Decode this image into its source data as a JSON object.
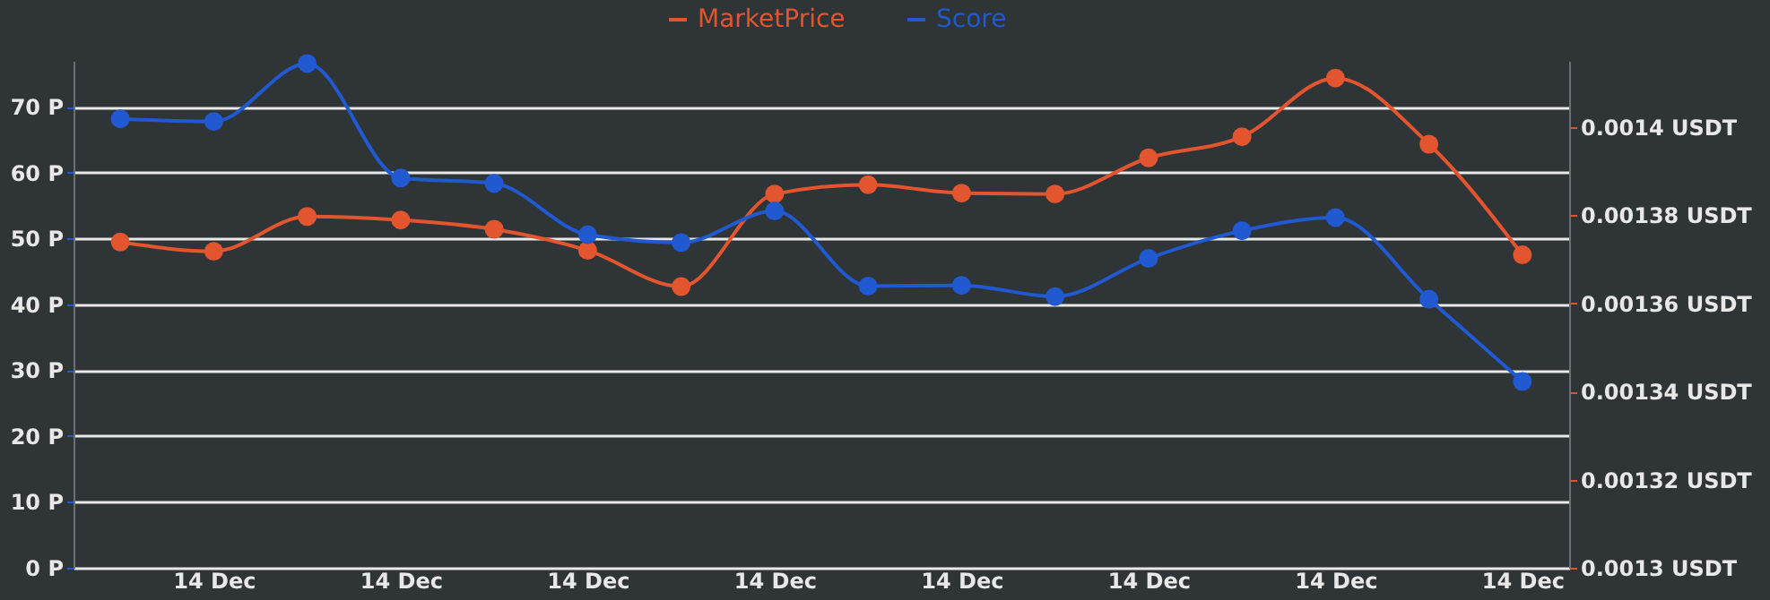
{
  "chart_data": {
    "type": "line",
    "categories": [
      null,
      "14 Dec",
      null,
      "14 Dec",
      null,
      "14 Dec",
      null,
      "14 Dec",
      null,
      "14 Dec",
      null,
      "14 Dec",
      null,
      "14 Dec",
      null,
      "14 Dec"
    ],
    "series": [
      {
        "name": "MarketPrice",
        "color": "#e2552f",
        "axis": "y2",
        "values": [
          0.0013739,
          0.0013718,
          0.0013797,
          0.0013789,
          0.0013768,
          0.001372,
          0.0013638,
          0.0013848,
          0.0013869,
          0.001385,
          0.0013848,
          0.001393,
          0.0013978,
          0.0014111,
          0.0013961,
          0.001371
        ]
      },
      {
        "name": "Score",
        "color": "#2159d0",
        "values": [
          68.2,
          67.8,
          76.6,
          59.2,
          58.4,
          50.6,
          49.4,
          54.2,
          42.8,
          42.9,
          41.2,
          47.0,
          51.2,
          53.2,
          40.8,
          28.3
        ]
      }
    ],
    "ylim": [
      0,
      77
    ],
    "yticks": [
      {
        "value": 0,
        "label": "0 P"
      },
      {
        "value": 10,
        "label": "10 P"
      },
      {
        "value": 20,
        "label": "20 P"
      },
      {
        "value": 30,
        "label": "30 P"
      },
      {
        "value": 40,
        "label": "40 P"
      },
      {
        "value": 50,
        "label": "50 P"
      },
      {
        "value": 60,
        "label": "60 P"
      },
      {
        "value": 70,
        "label": "70 P"
      }
    ],
    "y2lim": [
      0.0013,
      0.001415
    ],
    "y2ticks": [
      {
        "value": 0.0013,
        "label": "0.0013 USDT"
      },
      {
        "value": 0.00132,
        "label": "0.00132 USDT"
      },
      {
        "value": 0.00134,
        "label": "0.00134 USDT"
      },
      {
        "value": 0.00136,
        "label": "0.00136 USDT"
      },
      {
        "value": 0.00138,
        "label": "0.00138 USDT"
      },
      {
        "value": 0.0014,
        "label": "0.0014 USDT"
      }
    ],
    "grid": "y",
    "legend": "top",
    "marker": "circle",
    "line_style": "solid"
  }
}
